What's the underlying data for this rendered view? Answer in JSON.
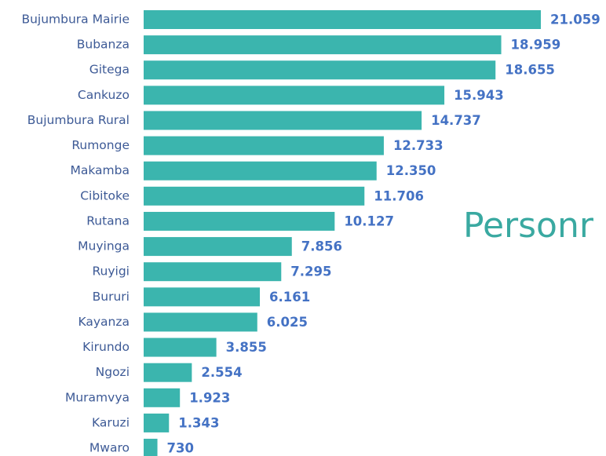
{
  "chart_data": {
    "type": "bar",
    "orientation": "horizontal",
    "categories": [
      "Bujumbura Mairie",
      "Bubanza",
      "Gitega",
      "Cankuzo",
      "Bujumbura Rural",
      "Rumonge",
      "Makamba",
      "Cibitoke",
      "Rutana",
      "Muyinga",
      "Ruyigi",
      "Bururi",
      "Kayanza",
      "Kirundo",
      "Ngozi",
      "Muramvya",
      "Karuzi",
      "Mwaro"
    ],
    "values": [
      21059,
      18959,
      18655,
      15943,
      14737,
      12733,
      12350,
      11706,
      10127,
      7856,
      7295,
      6161,
      6025,
      3855,
      2554,
      1923,
      1343,
      730
    ],
    "value_labels": [
      "21.059",
      "18.959",
      "18.655",
      "15.943",
      "14.737",
      "12.733",
      "12.350",
      "11.706",
      "10.127",
      "7.856",
      "7.295",
      "6.161",
      "6.025",
      "3.855",
      "2.554",
      "1.923",
      "1.343",
      "730"
    ],
    "color": "#3bb5ae",
    "annotation": "Personr"
  }
}
